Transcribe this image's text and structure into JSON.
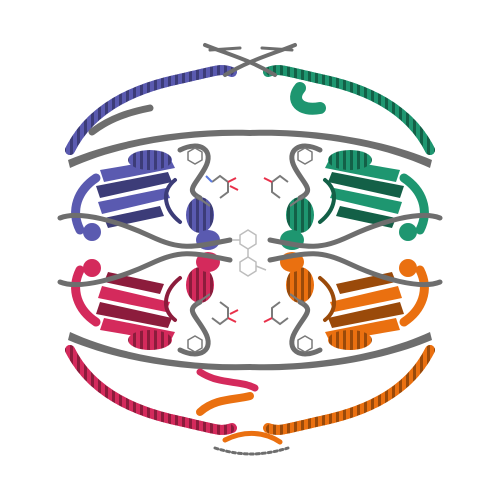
{
  "image": {
    "subject": "protein-structure-ribbon",
    "background": "#ffffff",
    "chains": [
      {
        "id": "chain-a",
        "color": "#5a5ab0",
        "shadow": "#3c3c78",
        "quadrant": "top-left"
      },
      {
        "id": "chain-b",
        "color": "#1e9670",
        "shadow": "#136047",
        "quadrant": "top-right"
      },
      {
        "id": "chain-c",
        "color": "#d42a5c",
        "shadow": "#8c1c3c",
        "quadrant": "bottom-left"
      },
      {
        "id": "chain-d",
        "color": "#ea7010",
        "shadow": "#9a4a0a",
        "quadrant": "bottom-right"
      }
    ],
    "ligand_colors": {
      "carbon": "#7a7a7a",
      "oxygen": "#e8304a",
      "nitrogen": "#5a7ae0"
    },
    "backbone_gray": "#6e6e6e"
  }
}
